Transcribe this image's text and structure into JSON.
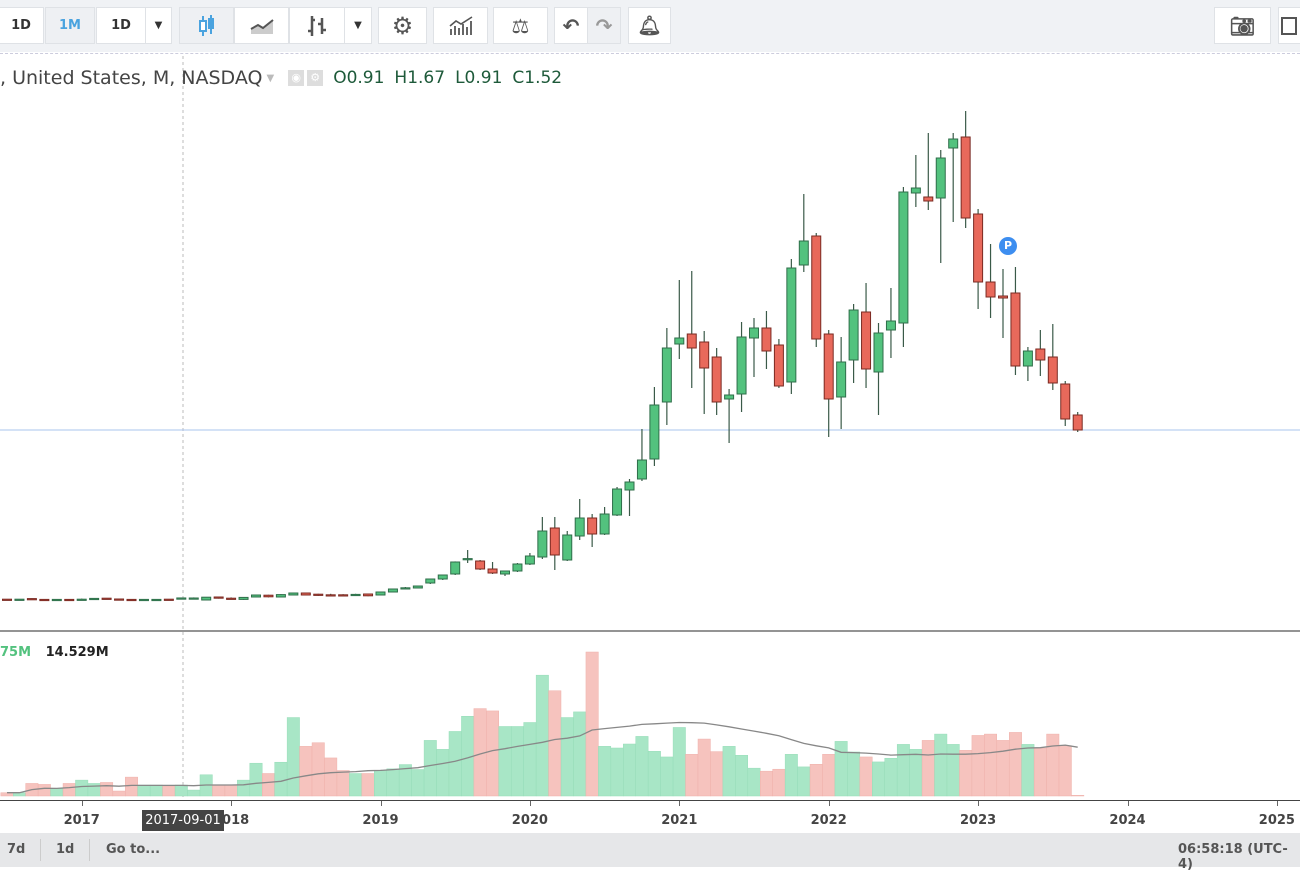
{
  "toolbar": {
    "interval_1": "1D",
    "interval_2": "1M",
    "interval_3": "1D",
    "selected_interval": "1M"
  },
  "legend": {
    "symbol": ", United States, M, NASDAQ",
    "open": "O0.91",
    "high": "H1.67",
    "low": "L0.91",
    "close": "C1.52"
  },
  "volume_legend": {
    "ma_value": "75M",
    "volume_value": "14.529M"
  },
  "marker": {
    "label": "P"
  },
  "crosshair_label": "2017-09-01",
  "bottom_bar": {
    "range_1": "7d",
    "range_2": "1d",
    "goto": "Go to...",
    "clock": "06:58:18 (UTC-4)"
  },
  "colors": {
    "up": "#53c27e",
    "down": "#e8695b",
    "vol_up": "#a8e6c6",
    "vol_down": "#f6c3be",
    "accent": "#4aa3df"
  },
  "chart_data": {
    "type": "candlestick",
    "interval": "monthly",
    "x_axis_ticks": [
      "2017",
      "2018",
      "2019",
      "2020",
      "2021",
      "2022",
      "2023",
      "2024",
      "2025"
    ],
    "last_price_line": 85.5,
    "columns": [
      "date",
      "open",
      "high",
      "low",
      "close",
      "volume_M"
    ],
    "rows": [
      [
        "2016-07",
        0.9,
        1.0,
        0.6,
        0.7,
        4.4
      ],
      [
        "2016-08",
        0.7,
        1.0,
        0.6,
        0.9,
        4.4
      ],
      [
        "2016-09",
        1.2,
        1.3,
        0.5,
        0.6,
        16.7
      ],
      [
        "2016-10",
        0.8,
        0.9,
        0.5,
        0.6,
        15.4
      ],
      [
        "2016-11",
        0.6,
        0.9,
        0.5,
        0.8,
        9.7
      ],
      [
        "2016-12",
        0.8,
        0.9,
        0.5,
        0.6,
        16.7
      ],
      [
        "2017-01",
        0.6,
        1.2,
        0.5,
        0.9,
        21.1
      ],
      [
        "2017-02",
        0.8,
        1.4,
        0.7,
        1.3,
        16.7
      ],
      [
        "2017-03",
        1.4,
        1.5,
        0.8,
        1.0,
        18.0
      ],
      [
        "2017-04",
        1.0,
        1.1,
        0.6,
        0.7,
        6.6
      ],
      [
        "2017-05",
        0.8,
        0.9,
        0.5,
        0.6,
        25.1
      ],
      [
        "2017-06",
        0.6,
        0.9,
        0.5,
        0.8,
        14.5
      ],
      [
        "2017-07",
        0.7,
        0.9,
        0.6,
        0.8,
        14.5
      ],
      [
        "2017-08",
        0.9,
        1.0,
        0.6,
        0.7,
        13.2
      ],
      [
        "2017-09",
        0.91,
        1.67,
        0.91,
        1.52,
        14.529
      ],
      [
        "2017-10",
        1.2,
        1.8,
        1.0,
        1.5,
        7.9
      ],
      [
        "2017-11",
        0.5,
        2.0,
        0.3,
        1.9,
        28.2
      ],
      [
        "2017-12",
        2.0,
        2.2,
        1.2,
        1.4,
        14.5
      ],
      [
        "2018-01",
        1.4,
        1.8,
        1.0,
        1.2,
        14.5
      ],
      [
        "2018-02",
        0.8,
        2.0,
        0.6,
        1.8,
        21.1
      ],
      [
        "2018-03",
        2.0,
        3.2,
        1.8,
        3.0,
        43.6
      ],
      [
        "2018-04",
        2.9,
        3.1,
        1.8,
        2.1,
        29.9
      ],
      [
        "2018-05",
        2.0,
        3.4,
        1.9,
        3.2,
        44.9
      ],
      [
        "2018-06",
        3.0,
        4.2,
        2.8,
        4.0,
        104.3
      ],
      [
        "2018-07",
        4.0,
        4.2,
        2.8,
        3.0,
        66.0
      ],
      [
        "2018-08",
        3.4,
        3.6,
        2.6,
        2.8,
        70.8
      ],
      [
        "2018-09",
        3.1,
        3.6,
        2.7,
        2.9,
        50.6
      ],
      [
        "2018-10",
        3.1,
        3.4,
        2.7,
        2.9,
        33.9
      ],
      [
        "2018-11",
        2.8,
        3.6,
        2.7,
        3.3,
        29.9
      ],
      [
        "2018-12",
        3.5,
        3.7,
        2.4,
        2.6,
        29.9
      ],
      [
        "2019-01",
        3.0,
        4.6,
        2.8,
        4.5,
        33.9
      ],
      [
        "2019-02",
        4.5,
        6.2,
        4.3,
        6.0,
        36.1
      ],
      [
        "2019-03",
        6.2,
        7.0,
        6.0,
        6.6,
        41.8
      ],
      [
        "2019-04",
        6.5,
        7.6,
        6.3,
        7.5,
        35.2
      ],
      [
        "2019-05",
        9.0,
        11.2,
        8.5,
        11.0,
        73.9
      ],
      [
        "2019-06",
        11.0,
        13.2,
        10.5,
        13.0,
        62.0
      ],
      [
        "2019-07",
        13.5,
        19.8,
        13.0,
        19.5,
        85.8
      ],
      [
        "2019-08",
        20.8,
        25.5,
        19.0,
        21.2,
        106.0
      ],
      [
        "2019-09",
        20.0,
        20.5,
        15.5,
        16.0,
        116.2
      ],
      [
        "2019-10",
        16.0,
        19.5,
        13.5,
        14.0,
        113.1
      ],
      [
        "2019-11",
        13.5,
        15.0,
        12.5,
        15.0,
        92.4
      ],
      [
        "2019-12",
        15.0,
        19.0,
        14.5,
        18.5,
        92.4
      ],
      [
        "2020-01",
        18.5,
        24.0,
        18.0,
        22.5,
        97.7
      ],
      [
        "2020-02",
        22.0,
        42.0,
        21.0,
        35.0,
        160.6
      ],
      [
        "2020-03",
        36.5,
        42.0,
        15.5,
        23.0,
        139.9
      ],
      [
        "2020-04",
        20.5,
        35.0,
        20.0,
        33.0,
        104.3
      ],
      [
        "2020-05",
        32.5,
        51.0,
        30.5,
        41.5,
        111.8
      ],
      [
        "2020-06",
        41.5,
        43.5,
        27.0,
        33.5,
        191.4
      ],
      [
        "2020-07",
        33.5,
        47.0,
        33.0,
        43.5,
        66.0
      ],
      [
        "2020-08",
        43.0,
        57.0,
        42.5,
        56.0,
        63.8
      ],
      [
        "2020-09",
        55.5,
        61.0,
        42.5,
        59.5,
        69.1
      ],
      [
        "2020-10",
        61.0,
        86.0,
        60.0,
        70.5,
        79.2
      ],
      [
        "2020-11",
        71.0,
        107.0,
        67.5,
        98.0,
        59.4
      ],
      [
        "2020-12",
        99.5,
        136.5,
        88.0,
        126.5,
        51.9
      ],
      [
        "2021-01",
        128.5,
        160.5,
        121.0,
        131.5,
        91.1
      ],
      [
        "2021-02",
        133.5,
        165.0,
        106.5,
        126.5,
        55.4
      ],
      [
        "2021-03",
        129.5,
        135.0,
        93.5,
        116.5,
        75.7
      ],
      [
        "2021-04",
        122.0,
        126.5,
        93.0,
        99.5,
        59.0
      ],
      [
        "2021-05",
        101.0,
        106.0,
        79.0,
        103.0,
        66.0
      ],
      [
        "2021-06",
        103.5,
        139.5,
        94.5,
        132.0,
        54.1
      ],
      [
        "2021-07",
        131.5,
        141.5,
        112.0,
        136.5,
        37.0
      ],
      [
        "2021-08",
        136.5,
        145.0,
        116.0,
        125.0,
        33.0
      ],
      [
        "2021-09",
        128.0,
        131.0,
        106.5,
        107.5,
        35.6
      ],
      [
        "2021-10",
        109.5,
        171.0,
        103.5,
        166.5,
        55.4
      ],
      [
        "2021-11",
        168.0,
        203.5,
        164.5,
        180.0,
        38.7
      ],
      [
        "2021-12",
        182.5,
        184.0,
        127.0,
        131.0,
        42.2
      ],
      [
        "2022-01",
        133.5,
        135.5,
        82.0,
        101.0,
        55.4
      ],
      [
        "2022-02",
        102.0,
        132.0,
        86.0,
        119.5,
        72.6
      ],
      [
        "2022-03",
        120.5,
        148.5,
        109.0,
        145.5,
        58.5
      ],
      [
        "2022-04",
        144.5,
        159.0,
        106.5,
        116.0,
        51.9
      ],
      [
        "2022-05",
        114.5,
        139.0,
        93.0,
        134.0,
        45.3
      ],
      [
        "2022-06",
        135.5,
        156.5,
        121.5,
        140.0,
        50.2
      ],
      [
        "2022-07",
        139.0,
        207.0,
        127.0,
        204.5,
        68.6
      ],
      [
        "2022-08",
        204.0,
        223.0,
        197.0,
        206.5,
        62.0
      ],
      [
        "2022-09",
        202.0,
        234.0,
        195.5,
        200.0,
        73.9
      ],
      [
        "2022-10",
        201.5,
        225.5,
        169.0,
        221.5,
        82.3
      ],
      [
        "2022-11",
        226.5,
        234.0,
        189.5,
        231.0,
        68.6
      ],
      [
        "2022-12",
        232.0,
        245.0,
        186.5,
        191.5,
        60.7
      ],
      [
        "2023-01",
        193.5,
        196.0,
        146.0,
        159.5,
        80.5
      ],
      [
        "2023-02",
        159.5,
        178.5,
        141.5,
        152.0,
        82.3
      ],
      [
        "2023-03",
        152.5,
        166.0,
        131.5,
        151.5,
        73.9
      ],
      [
        "2023-04",
        154.0,
        167.0,
        113.0,
        117.5,
        84.5
      ],
      [
        "2023-05",
        117.5,
        127.0,
        110.0,
        125.0,
        68.6
      ],
      [
        "2023-06",
        126.0,
        135.5,
        112.5,
        120.5,
        63.8
      ],
      [
        "2023-07",
        122.0,
        138.5,
        105.5,
        109.0,
        82.3
      ],
      [
        "2023-08",
        108.5,
        110.0,
        87.5,
        91.0,
        66.9
      ],
      [
        "2023-09",
        93.0,
        94.5,
        84.5,
        85.5,
        0.9
      ]
    ],
    "volume_ma_period": 20
  }
}
